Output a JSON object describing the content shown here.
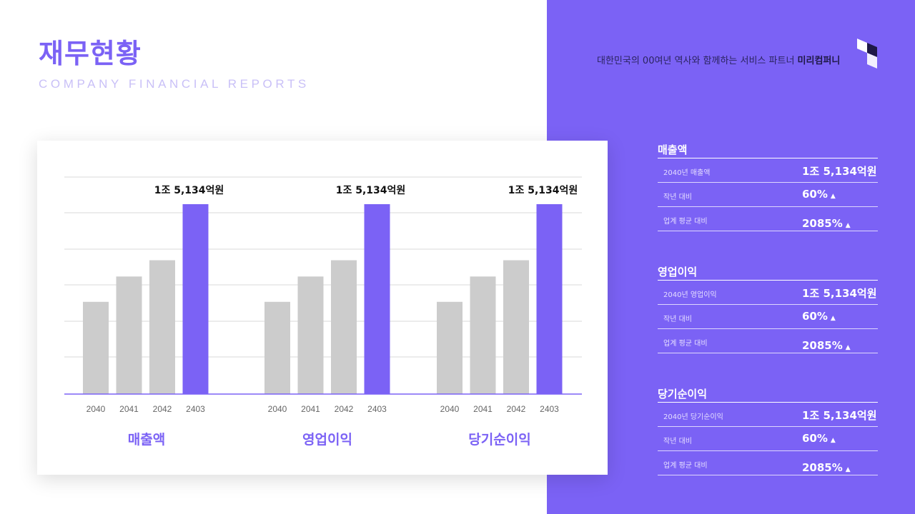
{
  "header": {
    "title": "재무현황",
    "subtitle": "COMPANY FINANCIAL REPORTS",
    "tagline_prefix": "대한민국의 00여년 역사와 함께하는 서비스 파트너 ",
    "tagline_brand": "미리컴퍼니"
  },
  "colors": {
    "accent": "#7b62f5",
    "bar_gray": "#cccccc",
    "grid": "#d9d9d9"
  },
  "chart_data": [
    {
      "type": "bar",
      "title": "매출액",
      "categories": [
        "2040",
        "2041",
        "2042",
        "2403"
      ],
      "values": [
        51,
        65,
        74,
        105
      ],
      "highlight_label": "1조 5,134억원",
      "ylim": [
        0,
        120
      ],
      "grid": true
    },
    {
      "type": "bar",
      "title": "영업이익",
      "categories": [
        "2040",
        "2041",
        "2042",
        "2403"
      ],
      "values": [
        51,
        65,
        74,
        105
      ],
      "highlight_label": "1조 5,134억원",
      "ylim": [
        0,
        120
      ],
      "grid": true
    },
    {
      "type": "bar",
      "title": "당기순이익",
      "categories": [
        "2040",
        "2041",
        "2042",
        "2403"
      ],
      "values": [
        51,
        65,
        74,
        105
      ],
      "highlight_label": "1조 5,134억원",
      "ylim": [
        0,
        120
      ],
      "grid": true
    }
  ],
  "metrics": [
    {
      "title": "매출액",
      "rows": [
        {
          "label": "2040년 매출액",
          "value": "1조 5,134억원",
          "arrow": ""
        },
        {
          "label": "작년 대비",
          "value": "60%",
          "arrow": "▲"
        },
        {
          "label": "업계 평균 대비",
          "value": "2085%",
          "arrow": "▲"
        }
      ]
    },
    {
      "title": "영업이익",
      "rows": [
        {
          "label": "2040년 영업이익",
          "value": "1조 5,134억원",
          "arrow": ""
        },
        {
          "label": "작년 대비",
          "value": "60%",
          "arrow": "▲"
        },
        {
          "label": "업계 평균 대비",
          "value": "2085%",
          "arrow": "▲"
        }
      ]
    },
    {
      "title": "당기순이익",
      "rows": [
        {
          "label": "2040년 당기순이익",
          "value": "1조 5,134억원",
          "arrow": ""
        },
        {
          "label": "작년 대비",
          "value": "60%",
          "arrow": "▲"
        },
        {
          "label": "업계 평균 대비",
          "value": "2085%",
          "arrow": "▲"
        }
      ]
    }
  ]
}
